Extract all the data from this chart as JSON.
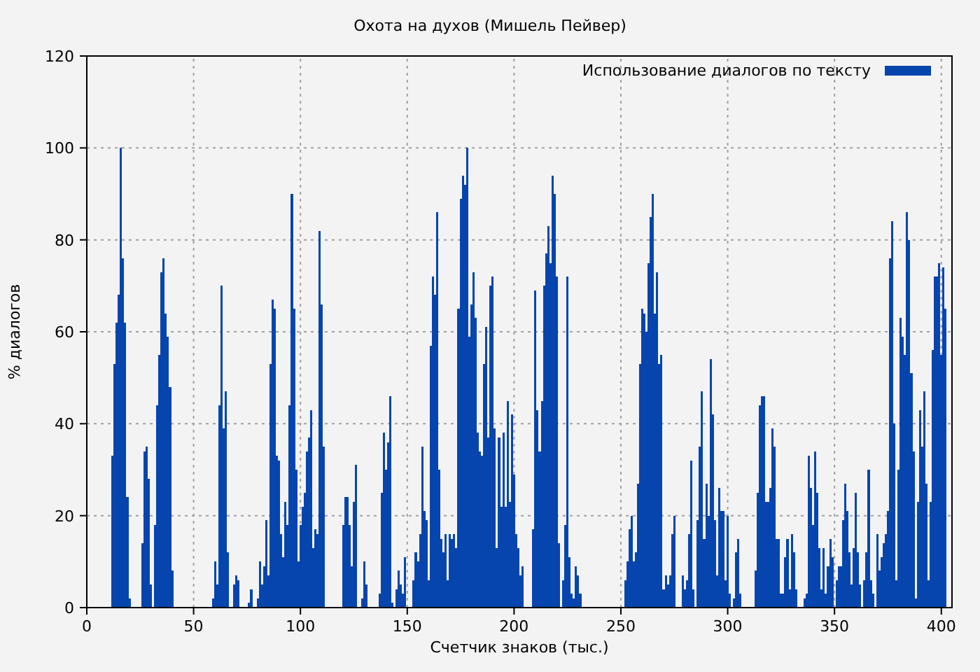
{
  "chart_data": {
    "type": "bar",
    "title": "Охота на духов (Мишель Пейвер)",
    "xlabel": "Счетчик знаков (тыс.)",
    "ylabel": "% диалогов",
    "x": [
      12,
      13,
      14,
      15,
      16,
      17,
      18,
      19,
      20,
      26,
      27,
      28,
      29,
      30,
      32,
      33,
      34,
      35,
      36,
      37,
      38,
      39,
      40,
      59,
      60,
      61,
      62,
      63,
      64,
      65,
      66,
      69,
      70,
      71,
      76,
      77,
      80,
      81,
      82,
      83,
      84,
      85,
      86,
      87,
      88,
      89,
      90,
      91,
      92,
      93,
      94,
      95,
      96,
      97,
      98,
      99,
      100,
      101,
      102,
      103,
      104,
      105,
      106,
      107,
      108,
      109,
      110,
      111,
      120,
      121,
      122,
      123,
      124,
      125,
      126,
      129,
      130,
      131,
      137,
      138,
      139,
      140,
      141,
      142,
      143,
      145,
      146,
      147,
      148,
      149,
      153,
      154,
      155,
      156,
      157,
      158,
      159,
      160,
      161,
      162,
      163,
      164,
      165,
      166,
      167,
      168,
      169,
      170,
      171,
      172,
      173,
      174,
      175,
      176,
      177,
      178,
      179,
      180,
      181,
      182,
      183,
      184,
      185,
      186,
      187,
      188,
      189,
      190,
      191,
      192,
      193,
      194,
      195,
      196,
      197,
      198,
      199,
      200,
      201,
      202,
      203,
      204,
      209,
      210,
      211,
      212,
      213,
      214,
      215,
      216,
      217,
      218,
      219,
      220,
      221,
      223,
      224,
      225,
      226,
      227,
      228,
      229,
      230,
      231,
      252,
      253,
      254,
      255,
      256,
      257,
      258,
      259,
      260,
      261,
      262,
      263,
      264,
      265,
      266,
      267,
      268,
      269,
      270,
      271,
      272,
      273,
      274,
      275,
      279,
      280,
      281,
      282,
      283,
      284,
      286,
      287,
      288,
      289,
      290,
      291,
      292,
      293,
      294,
      295,
      296,
      297,
      298,
      299,
      300,
      301,
      303,
      304,
      305,
      306,
      313,
      314,
      315,
      316,
      317,
      318,
      319,
      320,
      321,
      322,
      323,
      324,
      325,
      326,
      327,
      328,
      329,
      330,
      331,
      332,
      336,
      337,
      338,
      339,
      340,
      341,
      342,
      343,
      344,
      345,
      346,
      347,
      348,
      349,
      351,
      352,
      353,
      354,
      355,
      356,
      357,
      358,
      359,
      360,
      361,
      362,
      364,
      365,
      366,
      367,
      368,
      370,
      371,
      372,
      373,
      374,
      375,
      376,
      377,
      378,
      379,
      380,
      381,
      382,
      383,
      384,
      385,
      386,
      387,
      388,
      389,
      390,
      391,
      392,
      393,
      394,
      395,
      396,
      397,
      398,
      399,
      400,
      401,
      402
    ],
    "series": [
      {
        "name": "Использование диалогов по тексту",
        "color": "#0645ad",
        "values": [
          33,
          53,
          62,
          68,
          100,
          76,
          62,
          24,
          2,
          14,
          34,
          35,
          28,
          5,
          18,
          44,
          55,
          73,
          76,
          64,
          59,
          48,
          8,
          2,
          10,
          5,
          44,
          70,
          39,
          47,
          12,
          5,
          7,
          6,
          1,
          4,
          2,
          10,
          5,
          9,
          19,
          7,
          53,
          67,
          65,
          33,
          32,
          16,
          11,
          23,
          18,
          44,
          90,
          65,
          30,
          10,
          18,
          22,
          25,
          34,
          37,
          43,
          13,
          17,
          16,
          82,
          66,
          35,
          18,
          24,
          24,
          18,
          9,
          23,
          31,
          2,
          10,
          5,
          3,
          25,
          38,
          30,
          36,
          46,
          1,
          4,
          8,
          5,
          3,
          11,
          6,
          12,
          10,
          16,
          35,
          21,
          19,
          6,
          57,
          72,
          68,
          86,
          30,
          15,
          12,
          16,
          6,
          16,
          15,
          16,
          13,
          65,
          89,
          94,
          92,
          100,
          59,
          66,
          73,
          63,
          38,
          34,
          33,
          53,
          61,
          37,
          70,
          72,
          39,
          13,
          37,
          22,
          38,
          22,
          45,
          23,
          42,
          29,
          16,
          13,
          7,
          9,
          17,
          69,
          43,
          34,
          45,
          70,
          77,
          83,
          75,
          94,
          90,
          72,
          14,
          6,
          18,
          72,
          11,
          3,
          2,
          9,
          7,
          3,
          6,
          10,
          17,
          20,
          10,
          12,
          27,
          53,
          65,
          64,
          60,
          75,
          85,
          90,
          64,
          73,
          53,
          55,
          4,
          7,
          5,
          7,
          16,
          20,
          7,
          4,
          6,
          16,
          32,
          4,
          19,
          35,
          47,
          15,
          27,
          20,
          54,
          42,
          19,
          7,
          26,
          21,
          21,
          6,
          20,
          3,
          2,
          12,
          15,
          3,
          8,
          25,
          44,
          46,
          46,
          23,
          23,
          26,
          39,
          35,
          15,
          15,
          3,
          3,
          11,
          15,
          4,
          16,
          12,
          4,
          2,
          3,
          33,
          26,
          18,
          34,
          25,
          13,
          4,
          13,
          3,
          9,
          15,
          11,
          6,
          9,
          9,
          19,
          27,
          21,
          12,
          5,
          13,
          25,
          12,
          5,
          6,
          12,
          30,
          6,
          3,
          16,
          8,
          11,
          14,
          16,
          21,
          76,
          84,
          40,
          6,
          30,
          63,
          59,
          55,
          86,
          80,
          51,
          34,
          2,
          23,
          43,
          35,
          47,
          27,
          6,
          23,
          56,
          72,
          72,
          75,
          55,
          74,
          65
        ]
      }
    ],
    "xlim": [
      0,
      405
    ],
    "ylim": [
      0,
      120
    ],
    "xticks": [
      0,
      50,
      100,
      150,
      200,
      250,
      300,
      350,
      400
    ],
    "yticks": [
      0,
      20,
      40,
      60,
      80,
      100,
      120
    ],
    "grid": true,
    "legend": "top right"
  }
}
